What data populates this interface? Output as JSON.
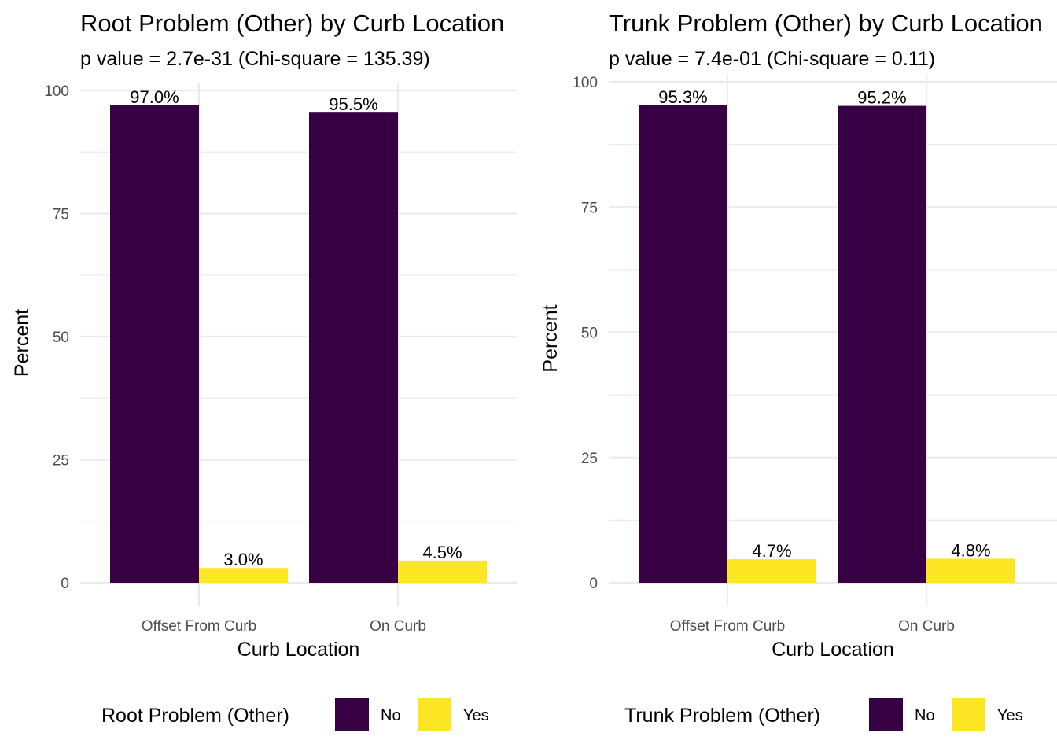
{
  "chart_data": [
    {
      "type": "bar",
      "title": "Root Problem (Other) by Curb Location",
      "subtitle": "p value = 2.7e-31 (Chi-square = 135.39)",
      "xlabel": "Curb Location",
      "ylabel": "Percent",
      "ylim": [
        0,
        100
      ],
      "yticks": [
        0,
        25,
        50,
        75,
        100
      ],
      "grid": true,
      "legend_position": "bottom",
      "legend_title": "Root Problem (Other)",
      "categories": [
        "Offset From Curb",
        "On Curb"
      ],
      "series": [
        {
          "name": "No",
          "color": "#360042",
          "values": [
            97.0,
            95.5
          ],
          "labels": [
            "97.0%",
            "95.5%"
          ]
        },
        {
          "name": "Yes",
          "color": "#FDE725",
          "values": [
            3.0,
            4.5
          ],
          "labels": [
            "3.0%",
            "4.5%"
          ]
        }
      ]
    },
    {
      "type": "bar",
      "title": "Trunk Problem (Other) by Curb Location",
      "subtitle": "p value = 7.4e-01 (Chi-square = 0.11)",
      "xlabel": "Curb Location",
      "ylabel": "Percent",
      "ylim": [
        0,
        100
      ],
      "yticks": [
        0,
        25,
        50,
        75,
        100
      ],
      "grid": true,
      "legend_position": "bottom",
      "legend_title": "Trunk Problem (Other)",
      "categories": [
        "Offset From Curb",
        "On Curb"
      ],
      "series": [
        {
          "name": "No",
          "color": "#360042",
          "values": [
            95.3,
            95.2
          ],
          "labels": [
            "95.3%",
            "95.2%"
          ]
        },
        {
          "name": "Yes",
          "color": "#FDE725",
          "values": [
            4.7,
            4.8
          ],
          "labels": [
            "4.7%",
            "4.8%"
          ]
        }
      ]
    }
  ]
}
